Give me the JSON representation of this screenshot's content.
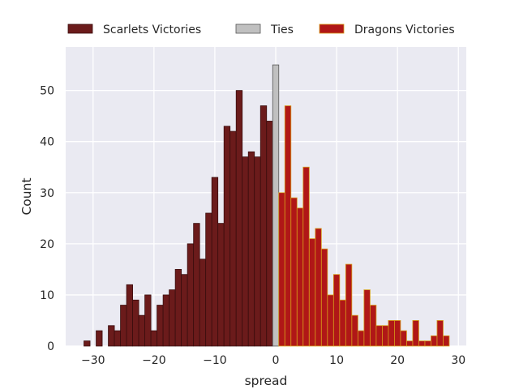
{
  "chart_data": {
    "type": "bar",
    "title": "",
    "xlabel": "spread",
    "ylabel": "Count",
    "xlim": [
      -34.5,
      31.3
    ],
    "ylim": [
      0,
      58.5
    ],
    "xticks": [
      -30,
      -20,
      -10,
      0,
      10,
      20,
      30
    ],
    "yticks": [
      0,
      10,
      20,
      30,
      40,
      50
    ],
    "grid": true,
    "legend_position": "top",
    "background": "#eaeaf2",
    "series": [
      {
        "name": "Scarlets Victories",
        "color": "#6b1b1b",
        "edge": "#3a0e0e",
        "x": [
          -31,
          -29,
          -27,
          -26,
          -25,
          -24,
          -23,
          -22,
          -21,
          -20,
          -19,
          -18,
          -17,
          -16,
          -15,
          -14,
          -13,
          -12,
          -11,
          -10,
          -9,
          -8,
          -7,
          -6,
          -5,
          -4,
          -3,
          -2,
          -1
        ],
        "values": [
          1,
          3,
          4,
          3,
          8,
          12,
          9,
          6,
          10,
          3,
          8,
          10,
          11,
          15,
          14,
          20,
          24,
          17,
          26,
          33,
          24,
          43,
          42,
          50,
          37,
          38,
          37,
          47,
          44
        ]
      },
      {
        "name": "Ties",
        "color": "#c0c0c0",
        "edge": "#555555",
        "x": [
          0
        ],
        "values": [
          55
        ]
      },
      {
        "name": "Dragons Victories",
        "color": "#b01717",
        "edge": "#d79b1a",
        "x": [
          1,
          2,
          3,
          4,
          5,
          6,
          7,
          8,
          9,
          10,
          11,
          12,
          13,
          14,
          15,
          16,
          17,
          18,
          19,
          20,
          21,
          22,
          23,
          24,
          25,
          26,
          27,
          28
        ],
        "values": [
          30,
          47,
          29,
          27,
          35,
          21,
          23,
          19,
          10,
          14,
          9,
          16,
          6,
          3,
          11,
          8,
          4,
          4,
          5,
          5,
          3,
          1,
          5,
          1,
          1,
          2,
          5,
          2
        ]
      }
    ]
  }
}
